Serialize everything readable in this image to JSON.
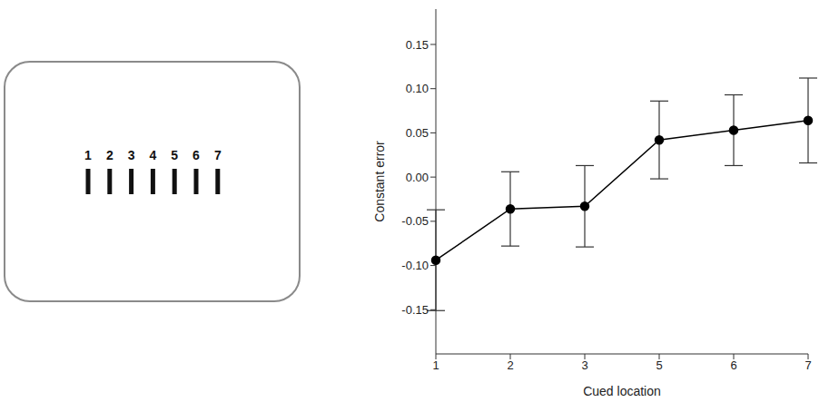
{
  "stimulus": {
    "labels": [
      "1",
      "2",
      "3",
      "4",
      "5",
      "6",
      "7"
    ]
  },
  "chart_data": {
    "type": "line",
    "x_label": "Cued location",
    "y_label": "Constant error",
    "categories": [
      "1",
      "2",
      "3",
      "5",
      "6",
      "7"
    ],
    "series": [
      {
        "name": "Constant error",
        "color": "#000000",
        "marker": "circle",
        "line_style": "solid",
        "values": [
          -0.094,
          -0.036,
          -0.033,
          0.042,
          0.053,
          0.064
        ],
        "errors": [
          0.057,
          0.042,
          0.046,
          0.044,
          0.04,
          0.048
        ]
      }
    ],
    "ylim": [
      -0.2,
      0.19
    ],
    "yticks": [
      -0.15,
      {
        "value": -0.1,
        "label": "-0.10"
      },
      -0.05,
      {
        "value": 0,
        "label": "0.00"
      },
      0.05,
      {
        "value": 0.1,
        "label": "0.10"
      },
      0.15
    ],
    "grid": false
  }
}
